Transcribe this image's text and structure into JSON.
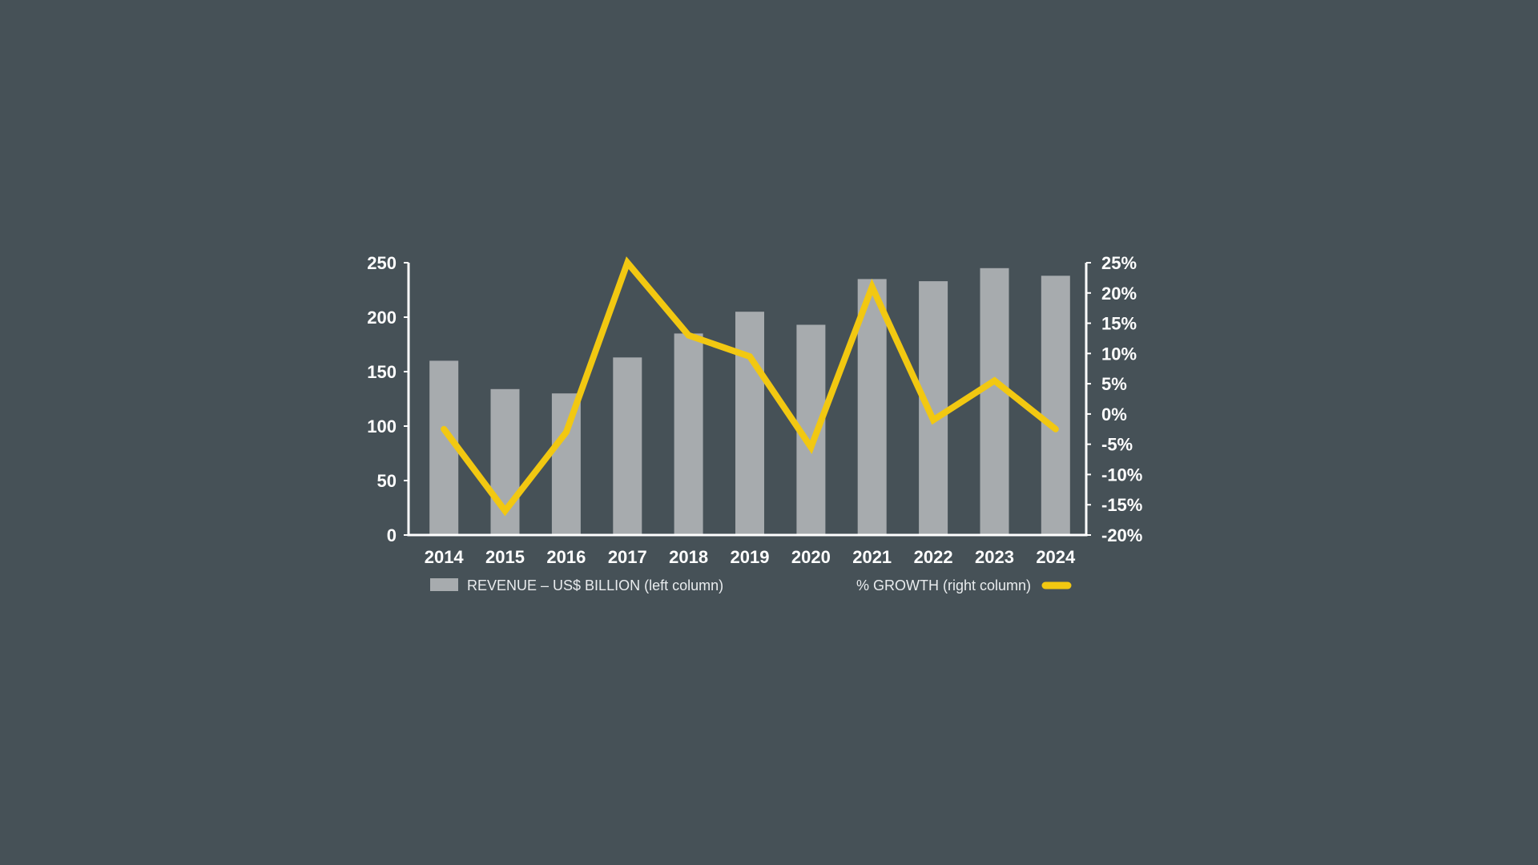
{
  "colors": {
    "background": "#465157",
    "bar": "#a7abae",
    "line": "#f2c811",
    "axis": "#ffffff",
    "text": "#ffffff"
  },
  "chart_data": {
    "type": "bar",
    "title": "",
    "categories": [
      "2014",
      "2015",
      "2016",
      "2017",
      "2018",
      "2019",
      "2020",
      "2021",
      "2022",
      "2023",
      "2024"
    ],
    "series": [
      {
        "name": "REVENUE – US$ BILLION (left column)",
        "type": "bar",
        "axis": "left",
        "values": [
          160,
          134,
          130,
          163,
          185,
          205,
          193,
          235,
          233,
          245,
          238
        ]
      },
      {
        "name": "% GROWTH (right column)",
        "type": "line",
        "axis": "right",
        "values": [
          -2.5,
          -16,
          -3,
          25,
          13,
          9.5,
          -5.5,
          21,
          -1,
          5.5,
          -2.5
        ]
      }
    ],
    "left_axis": {
      "ylim": [
        0,
        250
      ],
      "ticks": [
        0,
        50,
        100,
        150,
        200,
        250
      ],
      "tick_labels": [
        "0",
        "50",
        "100",
        "150",
        "200",
        "250"
      ]
    },
    "right_axis": {
      "ylim": [
        -20,
        25
      ],
      "ticks": [
        -20,
        -15,
        -10,
        -5,
        0,
        5,
        10,
        15,
        20,
        25
      ],
      "tick_labels": [
        "-20%",
        "-15%",
        "-10%",
        "-5%",
        "0%",
        "5%",
        "10%",
        "15%",
        "20%",
        "25%"
      ]
    },
    "grid": false,
    "legend_position": "bottom"
  }
}
